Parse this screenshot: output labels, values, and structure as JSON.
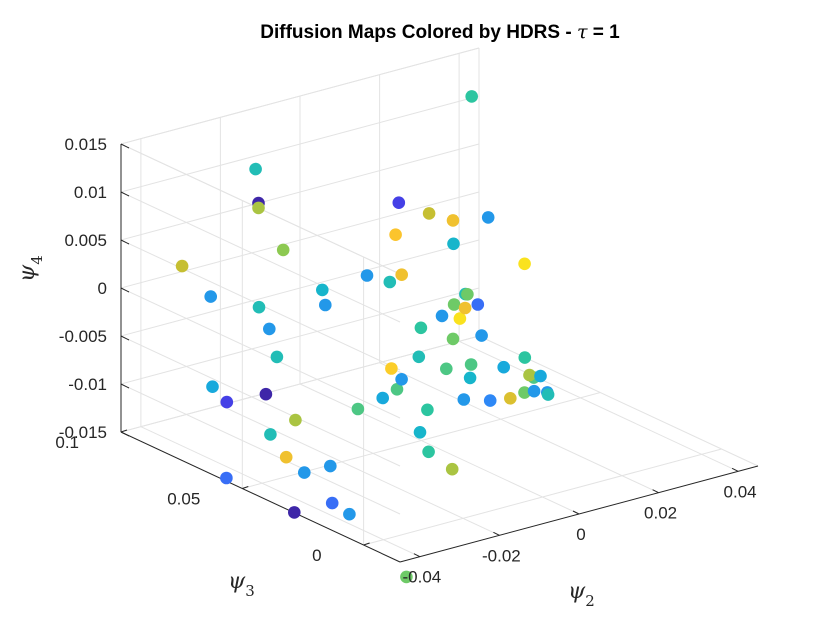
{
  "chart_data": {
    "type": "scatter",
    "subtype": "scatter3d",
    "title": "Diffusion Maps Colored by HDRS - τ = 1",
    "title_parts": {
      "prefix": "Diffusion Maps Colored by HDRS - ",
      "symbol": "τ",
      "suffix": " = 1"
    },
    "xlabel": {
      "symbol": "ψ",
      "sub": "2"
    },
    "ylabel": {
      "symbol": "ψ",
      "sub": "3"
    },
    "zlabel": {
      "symbol": "ψ",
      "sub": "4"
    },
    "xlim": [
      -0.045,
      0.045
    ],
    "ylim": [
      -0.015,
      0.1
    ],
    "zlim": [
      -0.015,
      0.015
    ],
    "xticks": [
      -0.04,
      -0.02,
      0,
      0.02,
      0.04
    ],
    "xtick_labels": [
      "-0.04",
      "-0.02",
      "0",
      "0.02",
      "0.04"
    ],
    "yticks": [
      0,
      0.05,
      0.1
    ],
    "ytick_labels": [
      "0",
      "0.05",
      "0.1"
    ],
    "zticks": [
      -0.015,
      -0.01,
      -0.005,
      0,
      0.005,
      0.01,
      0.015
    ],
    "ztick_labels": [
      "-0.015",
      "-0.01",
      "-0.005",
      "0",
      "0.005",
      "0.01",
      "0.015"
    ],
    "grid": true,
    "colormap": "parula",
    "colors": [
      "#3e26a8",
      "#4747f5",
      "#2e88f6",
      "#12b1d6",
      "#2cc5a0",
      "#7fcb59",
      "#c6bf32",
      "#fbc22e",
      "#f9f814"
    ],
    "points": [
      {
        "x": 0.0312,
        "y": 0.0804,
        "z": 0.0138,
        "c": 0.5
      },
      {
        "x": 0.0177,
        "y": 0.0883,
        "z": 0.0033,
        "c": 0.1
      },
      {
        "x": 0.0205,
        "y": 0.0804,
        "z": 0.0028,
        "c": 0.75
      },
      {
        "x": 0.0262,
        "y": 0.0799,
        "z": 0.0015,
        "c": 0.85
      },
      {
        "x": 0.0164,
        "y": 0.0875,
        "z": 0.0002,
        "c": 0.88
      },
      {
        "x": 0.0212,
        "y": 0.0715,
        "z": 0.0006,
        "c": 0.4
      },
      {
        "x": 0.0325,
        "y": 0.0757,
        "z": 0.0016,
        "c": 0.3
      },
      {
        "x": -0.003,
        "y": 0.0859,
        "z": -0.0032,
        "c": 0.4
      },
      {
        "x": 0.0097,
        "y": 0.0883,
        "z": -0.0034,
        "c": 0.3
      },
      {
        "x": 0.0052,
        "y": 0.0715,
        "z": -0.0016,
        "c": 0.45
      },
      {
        "x": -0.0009,
        "y": 0.0566,
        "z": 0.0016,
        "c": 0.85
      },
      {
        "x": 0.016,
        "y": 0.0627,
        "z": -0.0041,
        "c": 0.6
      },
      {
        "x": 0.03,
        "y": 0.0566,
        "z": -0.0007,
        "c": 0.95
      },
      {
        "x": 0.0185,
        "y": 0.0623,
        "z": -0.0047,
        "c": 0.85
      },
      {
        "x": 0.0151,
        "y": 0.0566,
        "z": -0.0022,
        "c": 0.45
      },
      {
        "x": -0.0032,
        "y": 0.0449,
        "z": -0.0023,
        "c": 0.5
      },
      {
        "x": 0.014,
        "y": 0.0481,
        "z": -0.0054,
        "c": 0.3
      },
      {
        "x": 0.0049,
        "y": 0.0495,
        "z": -0.0025,
        "c": 0.3
      },
      {
        "x": 0.0147,
        "y": 0.0582,
        "z": -0.0049,
        "c": 0.95
      },
      {
        "x": 0.0114,
        "y": 0.0497,
        "z": -0.001,
        "c": 0.6
      },
      {
        "x": 0.0089,
        "y": 0.0413,
        "z": -0.0008,
        "c": 0.2
      },
      {
        "x": 0.0037,
        "y": 0.043,
        "z": -0.004,
        "c": 0.6
      },
      {
        "x": 0.0044,
        "y": 0.0367,
        "z": -0.006,
        "c": 0.55
      },
      {
        "x": 0.0126,
        "y": 0.0367,
        "z": -0.0072,
        "c": 0.35
      },
      {
        "x": 0.0209,
        "y": 0.0416,
        "z": -0.0077,
        "c": 0.5
      },
      {
        "x": 0.0183,
        "y": 0.0354,
        "z": -0.0085,
        "c": 0.7
      },
      {
        "x": 0.0138,
        "y": 0.0301,
        "z": -0.0092,
        "c": 0.6
      },
      {
        "x": 0.0178,
        "y": 0.0327,
        "z": -0.0098,
        "c": 0.3
      },
      {
        "x": 0.023,
        "y": 0.0386,
        "z": -0.0095,
        "c": 0.35
      },
      {
        "x": 0.0215,
        "y": 0.033,
        "z": -0.0106,
        "c": 0.45
      },
      {
        "x": 0.0142,
        "y": 0.0366,
        "z": -0.0106,
        "c": 0.8
      },
      {
        "x": 0.0241,
        "y": 0.0376,
        "z": -0.0112,
        "c": 0.3
      },
      {
        "x": 0.0237,
        "y": 0.0425,
        "z": -0.0102,
        "c": 0.55
      },
      {
        "x": 0.0092,
        "y": 0.0367,
        "z": -0.0103,
        "c": 0.25
      },
      {
        "x": 0.0047,
        "y": 0.0402,
        "z": -0.0101,
        "c": 0.3
      },
      {
        "x": -0.001,
        "y": 0.0494,
        "z": -0.0061,
        "c": 0.45
      },
      {
        "x": 0.0006,
        "y": 0.0407,
        "z": -0.0065,
        "c": 0.55
      },
      {
        "x": 0.0013,
        "y": 0.032,
        "z": -0.0065,
        "c": 0.4
      },
      {
        "x": -0.0092,
        "y": 0.0324,
        "z": -0.0087,
        "c": 0.5
      },
      {
        "x": -0.0088,
        "y": 0.0437,
        "z": -0.0069,
        "c": 0.3
      },
      {
        "x": -0.0074,
        "y": 0.0479,
        "z": -0.0086,
        "c": 0.55
      },
      {
        "x": -0.011,
        "y": 0.0443,
        "z": -0.0056,
        "c": 0.9
      },
      {
        "x": -0.0169,
        "y": 0.0382,
        "z": -0.0073,
        "c": 0.35
      },
      {
        "x": -0.0135,
        "y": 0.0284,
        "z": -0.0101,
        "c": 0.4
      },
      {
        "x": -0.0119,
        "y": 0.0275,
        "z": -0.0122,
        "c": 0.5
      },
      {
        "x": -0.0118,
        "y": 0.0179,
        "z": -0.0129,
        "c": 0.7
      },
      {
        "x": -0.0207,
        "y": 0.0422,
        "z": -0.0085,
        "c": 0.55
      },
      {
        "x": -0.0296,
        "y": 0.061,
        "z": -0.0043,
        "c": 0.45
      },
      {
        "x": -0.0268,
        "y": 0.0687,
        "z": -0.0026,
        "c": 0.3
      },
      {
        "x": -0.0123,
        "y": 0.0694,
        "z": -0.0018,
        "c": 0.3
      },
      {
        "x": -0.0166,
        "y": 0.0797,
        "z": 0.0032,
        "c": 0.65
      },
      {
        "x": -0.0147,
        "y": 0.0942,
        "z": 0.0097,
        "c": 0.45
      },
      {
        "x": -0.0147,
        "y": 0.093,
        "z": 0.0063,
        "c": 0.0
      },
      {
        "x": -0.0147,
        "y": 0.093,
        "z": 0.0058,
        "c": 0.7
      },
      {
        "x": -0.033,
        "y": 0.0945,
        "z": 0.0016,
        "c": 0.75
      },
      {
        "x": -0.031,
        "y": 0.086,
        "z": -0.0008,
        "c": 0.3
      },
      {
        "x": -0.0233,
        "y": 0.0787,
        "z": -0.0019,
        "c": 0.45
      },
      {
        "x": -0.0356,
        "y": 0.0777,
        "z": -0.0087,
        "c": 0.35
      },
      {
        "x": -0.0353,
        "y": 0.0723,
        "z": -0.0097,
        "c": 0.1
      },
      {
        "x": -0.0257,
        "y": 0.0719,
        "z": -0.0099,
        "c": 0.0
      },
      {
        "x": -0.0233,
        "y": 0.0637,
        "z": -0.0119,
        "c": 0.7
      },
      {
        "x": -0.0269,
        "y": 0.0681,
        "z": -0.0135,
        "c": 0.45
      },
      {
        "x": -0.0289,
        "y": 0.0583,
        "z": -0.0145,
        "c": 0.85
      },
      {
        "x": -0.028,
        "y": 0.0523,
        "z": -0.0155,
        "c": 0.3
      },
      {
        "x": -0.0213,
        "y": 0.0526,
        "z": -0.0156,
        "c": 0.3
      },
      {
        "x": -0.0271,
        "y": 0.0423,
        "z": -0.0176,
        "c": 0.2
      },
      {
        "x": -0.0252,
        "y": 0.0383,
        "z": -0.0185,
        "c": 0.3
      },
      {
        "x": -0.039,
        "y": 0.0664,
        "z": -0.0165,
        "c": 0.2
      },
      {
        "x": -0.0337,
        "y": 0.0471,
        "z": -0.0184,
        "c": 0.0
      },
      {
        "x": -0.0251,
        "y": 0.015,
        "z": -0.0223,
        "c": 0.6
      }
    ]
  }
}
